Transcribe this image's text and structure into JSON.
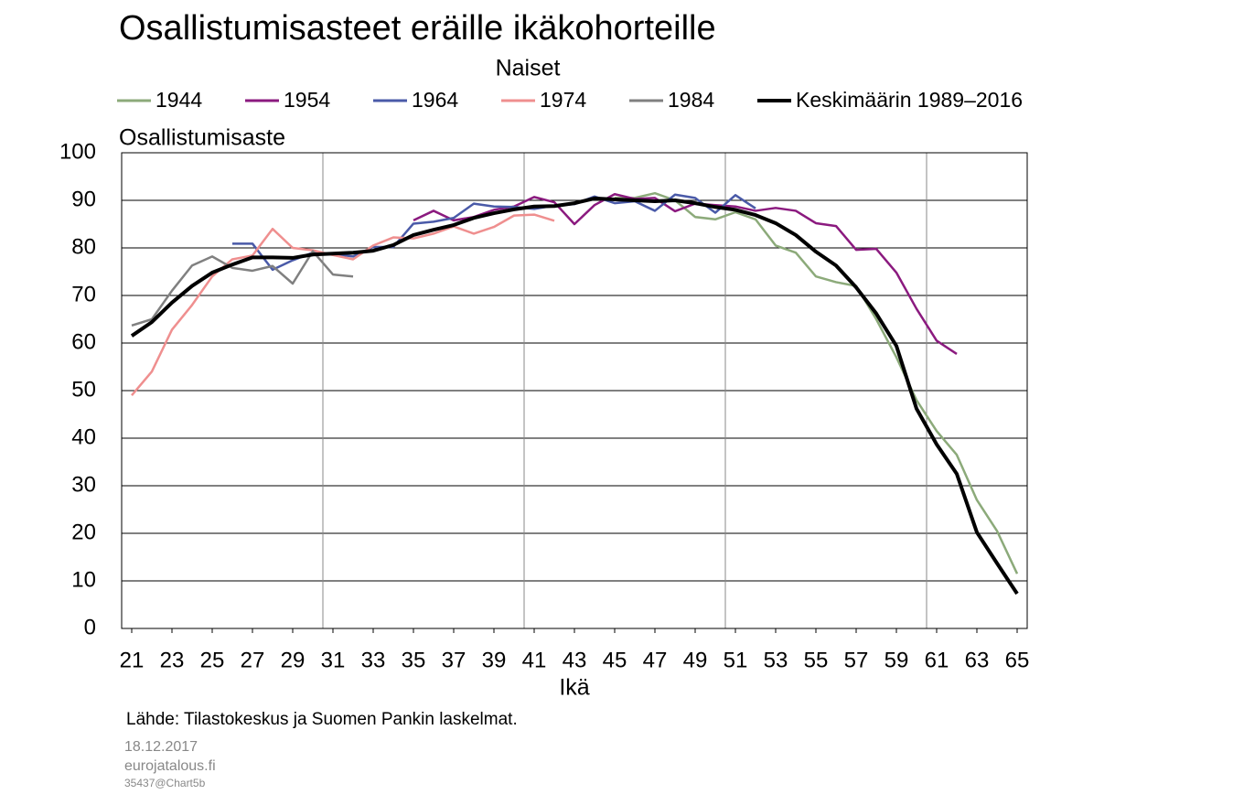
{
  "chart_data": {
    "type": "line",
    "title": "Osallistumisasteet eräille ikäkohorteille",
    "subtitle": "Naiset",
    "y_label": "Osallistumisaste",
    "x_label": "Ikä",
    "source": "Lähde: Tilastokeskus ja Suomen Pankin laskelmat.",
    "date": "18.12.2017",
    "site": "eurojatalous.fi",
    "code": "35437@Chart5b",
    "x": [
      21,
      22,
      23,
      24,
      25,
      26,
      27,
      28,
      29,
      30,
      31,
      32,
      33,
      34,
      35,
      36,
      37,
      38,
      39,
      40,
      41,
      42,
      43,
      44,
      45,
      46,
      47,
      48,
      49,
      50,
      51,
      52,
      53,
      54,
      55,
      56,
      57,
      58,
      59,
      60,
      61,
      62,
      63,
      64,
      65
    ],
    "xlim": [
      20.5,
      65.5
    ],
    "xticks": [
      21,
      23,
      25,
      27,
      29,
      31,
      33,
      35,
      37,
      39,
      41,
      43,
      45,
      47,
      49,
      51,
      53,
      55,
      57,
      59,
      61,
      63,
      65
    ],
    "ylim": [
      0,
      100
    ],
    "yticks": [
      0,
      10,
      20,
      30,
      40,
      50,
      60,
      70,
      80,
      90,
      100
    ],
    "grid": true,
    "series": [
      {
        "name": "1944",
        "color": "#8caa7a",
        "values": [
          null,
          null,
          null,
          null,
          null,
          null,
          null,
          null,
          null,
          null,
          null,
          null,
          null,
          null,
          null,
          null,
          null,
          null,
          null,
          null,
          null,
          null,
          null,
          null,
          90.5,
          90.5,
          91.5,
          90,
          86.5,
          86,
          87.5,
          86,
          80.5,
          79,
          74,
          72.8,
          72,
          65,
          57,
          48,
          41.5,
          36.5,
          27,
          20.5,
          11.5
        ]
      },
      {
        "name": "1954",
        "color": "#8b1a7f",
        "values": [
          null,
          null,
          null,
          null,
          null,
          null,
          null,
          null,
          null,
          null,
          null,
          null,
          null,
          null,
          85.8,
          87.8,
          85.8,
          86.5,
          88,
          88.7,
          90.7,
          89.6,
          85,
          89,
          91.3,
          90.3,
          90.5,
          87.7,
          89.3,
          89,
          88.7,
          87.8,
          88.4,
          87.8,
          85.2,
          84.6,
          79.6,
          79.8,
          74.8,
          67.2,
          60.5,
          57.7,
          null,
          null,
          null
        ]
      },
      {
        "name": "1964",
        "color": "#4a5aa8",
        "values": [
          null,
          null,
          null,
          null,
          null,
          80.9,
          80.9,
          75.4,
          77.4,
          79,
          78.7,
          78.2,
          80.2,
          80.2,
          85.1,
          85.5,
          86.3,
          89.3,
          88.7,
          88.6,
          88.2,
          88.9,
          89.2,
          90.8,
          89.4,
          89.8,
          87.8,
          91.2,
          90.5,
          87.4,
          91.1,
          88.3,
          null,
          null,
          null,
          null,
          null,
          null,
          null,
          null,
          null,
          null,
          null,
          null,
          null
        ]
      },
      {
        "name": "1974",
        "color": "#ef8f8f",
        "values": [
          49,
          54,
          62.8,
          68,
          74,
          77.6,
          78.4,
          84,
          80,
          79.5,
          78.5,
          77.6,
          80.5,
          82.2,
          82,
          83,
          84.5,
          83,
          84.4,
          86.8,
          87,
          85.7,
          null,
          null,
          null,
          null,
          null,
          null,
          null,
          null,
          null,
          null,
          null,
          null,
          null,
          null,
          null,
          null,
          null,
          null,
          null,
          null,
          null,
          null,
          null
        ]
      },
      {
        "name": "1984",
        "color": "#808080",
        "values": [
          63.7,
          65,
          71,
          76.3,
          78.2,
          75.8,
          75.2,
          76.2,
          72.5,
          79.3,
          74.4,
          74,
          null,
          null,
          null,
          null,
          null,
          null,
          null,
          null,
          null,
          null,
          null,
          null,
          null,
          null,
          null,
          null,
          null,
          null,
          null,
          null,
          null,
          null,
          null,
          null,
          null,
          null,
          null,
          null,
          null,
          null,
          null,
          null,
          null
        ]
      },
      {
        "name": "Keskimäärin 1989–2016",
        "color": "#000000",
        "values": [
          61.5,
          64.4,
          68.5,
          72,
          74.8,
          76.5,
          78,
          78,
          77.9,
          78.6,
          78.8,
          79,
          79.4,
          80.6,
          82.7,
          83.8,
          84.8,
          86.3,
          87.3,
          88.1,
          88.7,
          88.8,
          89.4,
          90.4,
          90.2,
          90,
          89.8,
          90,
          89.4,
          88.6,
          88,
          86.9,
          85.2,
          82.7,
          79.2,
          76.3,
          71.7,
          66.2,
          59.4,
          46.2,
          38.7,
          32.5,
          20.2,
          13.7,
          7.3
        ]
      }
    ]
  }
}
